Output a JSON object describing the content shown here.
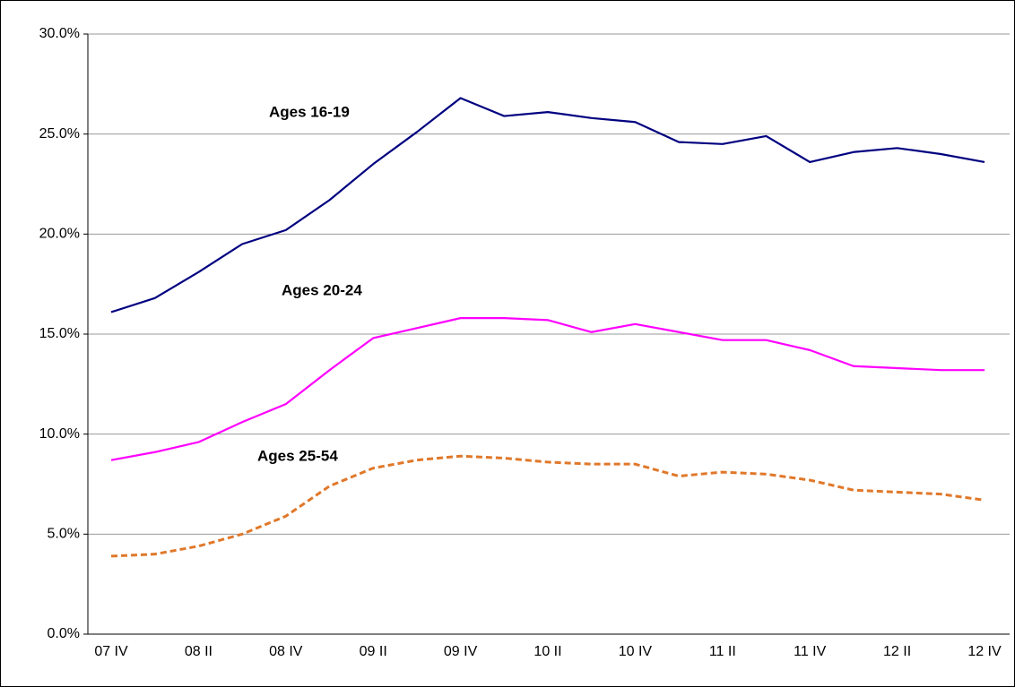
{
  "chart_data": {
    "type": "line",
    "categories": [
      "07 IV",
      null,
      "08 II",
      null,
      "08 IV",
      null,
      "09 II",
      null,
      "09 IV",
      null,
      "10 II",
      null,
      "10 IV",
      null,
      "11 II",
      null,
      "11 IV",
      null,
      "12 II",
      null,
      "12 IV"
    ],
    "series": [
      {
        "name": "Ages 16-19",
        "color": "#000080",
        "dash": false,
        "values": [
          16.1,
          16.8,
          18.1,
          19.5,
          20.2,
          21.7,
          23.5,
          25.1,
          26.8,
          25.9,
          26.1,
          25.8,
          25.6,
          24.6,
          24.5,
          24.9,
          23.6,
          24.1,
          24.3,
          24.0,
          23.6
        ]
      },
      {
        "name": "Ages 20-24",
        "color": "#ff00ff",
        "dash": false,
        "values": [
          8.7,
          9.1,
          9.6,
          10.6,
          11.5,
          13.2,
          14.8,
          15.3,
          15.8,
          15.8,
          15.7,
          15.1,
          15.5,
          15.1,
          14.7,
          14.7,
          14.2,
          13.4,
          13.3,
          13.2,
          13.2
        ]
      },
      {
        "name": "Ages 25-54",
        "color": "#e0782a",
        "dash": true,
        "values": [
          3.9,
          4.0,
          4.4,
          5.0,
          5.9,
          7.4,
          8.3,
          8.7,
          8.9,
          8.8,
          8.6,
          8.5,
          8.5,
          7.9,
          8.1,
          8.0,
          7.7,
          7.2,
          7.1,
          7.0,
          6.7
        ]
      }
    ],
    "ylim": [
      0,
      30
    ],
    "yticks": [
      {
        "value": 0,
        "label": "0.0%"
      },
      {
        "value": 5,
        "label": "5.0%"
      },
      {
        "value": 10,
        "label": "10.0%"
      },
      {
        "value": 15,
        "label": "15.0%"
      },
      {
        "value": 20,
        "label": "20.0%"
      },
      {
        "value": 25,
        "label": "25.0%"
      },
      {
        "value": 30,
        "label": "30.0%"
      }
    ],
    "grid": true
  }
}
